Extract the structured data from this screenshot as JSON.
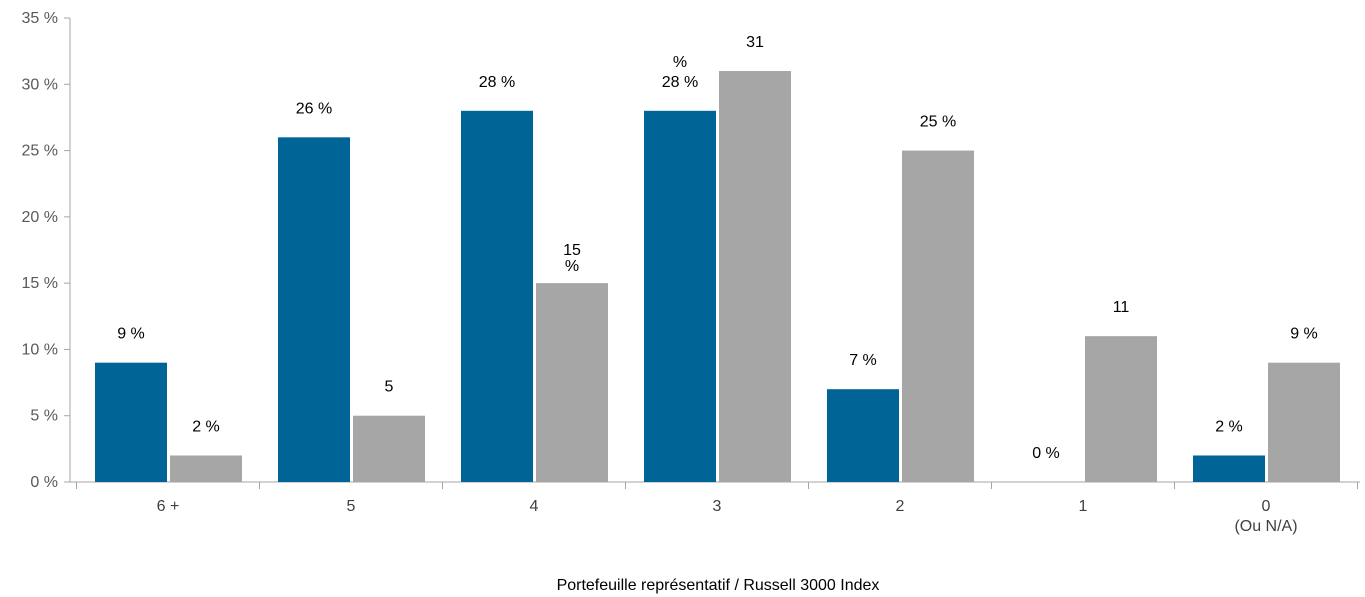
{
  "chart_data": {
    "type": "bar",
    "categories": [
      [
        "6 +"
      ],
      [
        "5"
      ],
      [
        "4"
      ],
      [
        "3"
      ],
      [
        "2"
      ],
      [
        "1"
      ],
      [
        "0",
        "(Ou N/A)"
      ]
    ],
    "series": [
      {
        "values": [
          9,
          26,
          28,
          28,
          7,
          0,
          2
        ],
        "color": "#006596",
        "labels": [
          [
            "9 %"
          ],
          [
            "26 %"
          ],
          [
            "28 %"
          ],
          [
            "28 %"
          ],
          [
            "7 %"
          ],
          [
            "0 %"
          ],
          [
            "2 %"
          ]
        ]
      },
      {
        "values": [
          2,
          5,
          15,
          31,
          25,
          11,
          9
        ],
        "color": "#a6a6a6",
        "labels": [
          [
            "2 %"
          ],
          [
            "5"
          ],
          [
            "15",
            "%"
          ],
          [
            "31"
          ],
          [
            "25 %"
          ],
          [
            "11"
          ],
          [
            "9 %"
          ]
        ]
      }
    ],
    "extra_labels": [
      {
        "text": "%",
        "category": 3,
        "series": 0
      }
    ],
    "y_ticks": [
      "0 %",
      "5 %",
      "10 %",
      "15 %",
      "20 %",
      "25 %",
      "30 %",
      "35 %"
    ],
    "ylim": [
      0,
      35
    ],
    "xlabel": "Portefeuille représentatif / Russell 3000 Index",
    "ylabel": "",
    "title": "",
    "grid": false,
    "legend": "none",
    "axis_color": "#a6a6a6"
  }
}
